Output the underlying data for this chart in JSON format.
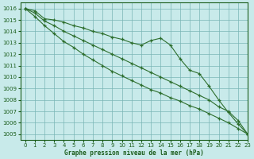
{
  "title": "Graphe pression niveau de la mer (hPa)",
  "background_color": "#c8eaea",
  "plot_bg_color": "#c8eaea",
  "line_color": "#2d6e2d",
  "grid_color": "#7ab5b5",
  "text_color": "#1a5c1a",
  "ylim": [
    1004.5,
    1016.5
  ],
  "xlim": [
    -0.5,
    23
  ],
  "yticks": [
    1005,
    1006,
    1007,
    1008,
    1009,
    1010,
    1011,
    1012,
    1013,
    1014,
    1015,
    1016
  ],
  "xticks": [
    0,
    1,
    2,
    3,
    4,
    5,
    6,
    7,
    8,
    9,
    10,
    11,
    12,
    13,
    14,
    15,
    16,
    17,
    18,
    19,
    20,
    21,
    22,
    23
  ],
  "series": [
    [
      1016.0,
      1015.8,
      1015.1,
      1015.0,
      1014.8,
      1014.5,
      1014.3,
      1014.0,
      1013.8,
      1013.5,
      1013.3,
      1013.0,
      1012.8,
      1013.2,
      1013.4,
      1012.8,
      1011.6,
      1010.6,
      1010.3,
      1009.2,
      1008.0,
      1006.9,
      1005.9,
      1005.0
    ],
    [
      1016.0,
      1015.6,
      1014.9,
      1014.5,
      1014.0,
      1013.6,
      1013.2,
      1012.8,
      1012.4,
      1012.0,
      1011.6,
      1011.2,
      1010.8,
      1010.4,
      1010.0,
      1009.6,
      1009.2,
      1008.8,
      1008.4,
      1008.0,
      1007.4,
      1007.0,
      1006.2,
      1005.0
    ],
    [
      1016.0,
      1015.3,
      1014.5,
      1013.8,
      1013.1,
      1012.6,
      1012.0,
      1011.5,
      1011.0,
      1010.5,
      1010.1,
      1009.7,
      1009.3,
      1008.9,
      1008.6,
      1008.2,
      1007.9,
      1007.5,
      1007.2,
      1006.8,
      1006.4,
      1006.0,
      1005.5,
      1005.0
    ]
  ]
}
